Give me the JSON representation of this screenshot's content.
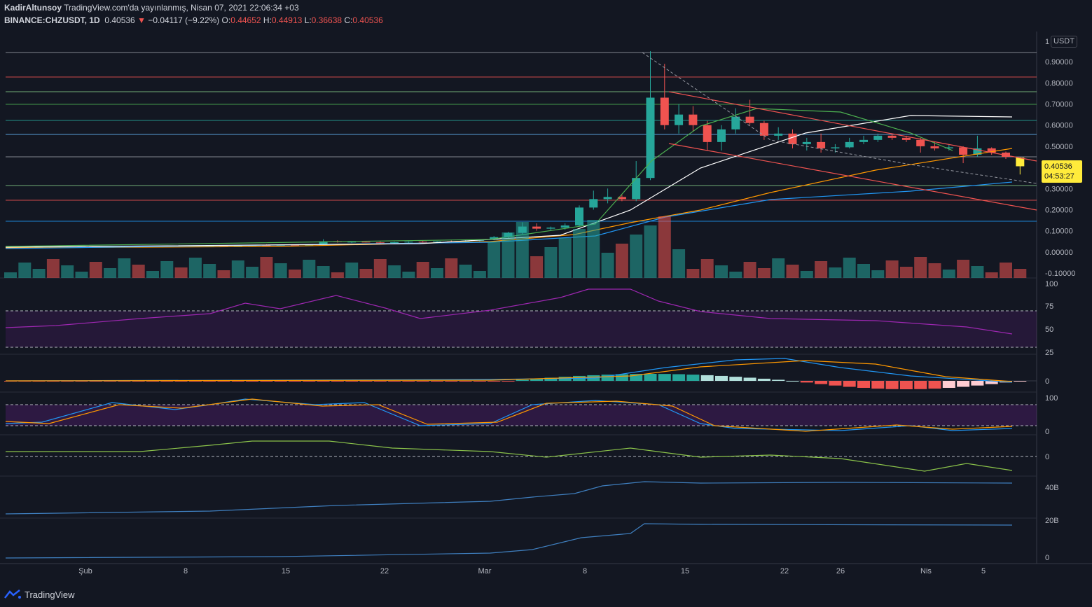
{
  "header": {
    "author": "KadirAltunsoy",
    "published": " TradingView.com'da yayınlanmış, Nisan 07, 2021 22:06:34 +03",
    "symbol": "BINANCE:CHZUSDT, 1D",
    "last": "0.40536",
    "change_arrow": "▼",
    "change": "−0.04117 (−9.22%)",
    "o_label": "O:",
    "o": "0.44652",
    "h_label": "H:",
    "h": "0.44913",
    "l_label": "L:",
    "l": "0.36638",
    "c_label": "C:",
    "c": "0.40536"
  },
  "price_axis": {
    "unit": "USDT",
    "ticks": [
      "1",
      "0.90000",
      "0.80000",
      "0.70000",
      "0.60000",
      "0.50000",
      "0.40000",
      "0.30000",
      "0.20000",
      "0.10000",
      "0.00000",
      "-0.10000"
    ],
    "last_price": "0.40536",
    "countdown": "04:53:27"
  },
  "time_axis": {
    "labels": [
      "Şub",
      "8",
      "15",
      "22",
      "Mar",
      "8",
      "15",
      "22",
      "26",
      "Nis",
      "5"
    ]
  },
  "rsi_axis": [
    "100",
    "75",
    "50",
    "25"
  ],
  "macd_axis": [
    "0"
  ],
  "stoch_axis": [
    "100",
    "0"
  ],
  "osc_axis": [
    "0"
  ],
  "vol_axis_1": [
    "40B"
  ],
  "vol_axis_2": [
    "20B",
    "0"
  ],
  "footer": {
    "brand": "TradingView"
  },
  "colors": {
    "background": "#131722",
    "up": "#26a69a",
    "down": "#ef5350",
    "last_candle": "#ffeb3b",
    "rsi": "#9c27b0",
    "macd": "#2196f3",
    "signal": "#ff9800"
  },
  "chart_data": {
    "type": "candlestick",
    "symbol": "BINANCE:CHZUSDT",
    "interval": "1D",
    "ylim": [
      -0.1,
      1.0
    ],
    "candles": [
      [
        0.02,
        0.022,
        0.018,
        0.021
      ],
      [
        0.021,
        0.023,
        0.02,
        0.022
      ],
      [
        0.022,
        0.024,
        0.021,
        0.023
      ],
      [
        0.023,
        0.025,
        0.021,
        0.022
      ],
      [
        0.022,
        0.024,
        0.021,
        0.023
      ],
      [
        0.023,
        0.025,
        0.022,
        0.024
      ],
      [
        0.024,
        0.026,
        0.022,
        0.023
      ],
      [
        0.023,
        0.025,
        0.022,
        0.024
      ],
      [
        0.024,
        0.026,
        0.023,
        0.025
      ],
      [
        0.025,
        0.027,
        0.023,
        0.024
      ],
      [
        0.024,
        0.026,
        0.023,
        0.025
      ],
      [
        0.025,
        0.028,
        0.024,
        0.027
      ],
      [
        0.027,
        0.03,
        0.025,
        0.026
      ],
      [
        0.026,
        0.028,
        0.025,
        0.027
      ],
      [
        0.027,
        0.03,
        0.026,
        0.029
      ],
      [
        0.029,
        0.032,
        0.027,
        0.028
      ],
      [
        0.028,
        0.031,
        0.027,
        0.03
      ],
      [
        0.03,
        0.034,
        0.029,
        0.032
      ],
      [
        0.032,
        0.036,
        0.03,
        0.031
      ],
      [
        0.031,
        0.034,
        0.03,
        0.033
      ],
      [
        0.033,
        0.036,
        0.031,
        0.032
      ],
      [
        0.032,
        0.035,
        0.031,
        0.034
      ],
      [
        0.034,
        0.06,
        0.033,
        0.05
      ],
      [
        0.05,
        0.055,
        0.044,
        0.046
      ],
      [
        0.046,
        0.05,
        0.042,
        0.048
      ],
      [
        0.048,
        0.052,
        0.044,
        0.045
      ],
      [
        0.045,
        0.05,
        0.04,
        0.042
      ],
      [
        0.042,
        0.048,
        0.04,
        0.046
      ],
      [
        0.046,
        0.05,
        0.042,
        0.048
      ],
      [
        0.048,
        0.052,
        0.044,
        0.047
      ],
      [
        0.047,
        0.052,
        0.045,
        0.05
      ],
      [
        0.05,
        0.054,
        0.046,
        0.049
      ],
      [
        0.049,
        0.056,
        0.047,
        0.053
      ],
      [
        0.053,
        0.06,
        0.05,
        0.058
      ],
      [
        0.058,
        0.075,
        0.055,
        0.07
      ],
      [
        0.07,
        0.095,
        0.065,
        0.09
      ],
      [
        0.09,
        0.14,
        0.085,
        0.12
      ],
      [
        0.12,
        0.135,
        0.1,
        0.11
      ],
      [
        0.11,
        0.12,
        0.1,
        0.115
      ],
      [
        0.115,
        0.135,
        0.105,
        0.125
      ],
      [
        0.125,
        0.22,
        0.12,
        0.21
      ],
      [
        0.21,
        0.29,
        0.2,
        0.25
      ],
      [
        0.25,
        0.3,
        0.23,
        0.26
      ],
      [
        0.26,
        0.27,
        0.24,
        0.25
      ],
      [
        0.25,
        0.43,
        0.24,
        0.35
      ],
      [
        0.35,
        0.95,
        0.34,
        0.73
      ],
      [
        0.73,
        0.89,
        0.58,
        0.6
      ],
      [
        0.6,
        0.7,
        0.56,
        0.65
      ],
      [
        0.65,
        0.69,
        0.57,
        0.6
      ],
      [
        0.6,
        0.62,
        0.48,
        0.52
      ],
      [
        0.52,
        0.6,
        0.48,
        0.58
      ],
      [
        0.58,
        0.68,
        0.56,
        0.64
      ],
      [
        0.64,
        0.72,
        0.6,
        0.61
      ],
      [
        0.61,
        0.62,
        0.53,
        0.55
      ],
      [
        0.55,
        0.59,
        0.53,
        0.56
      ],
      [
        0.56,
        0.58,
        0.49,
        0.51
      ],
      [
        0.51,
        0.54,
        0.48,
        0.52
      ],
      [
        0.52,
        0.56,
        0.47,
        0.49
      ],
      [
        0.49,
        0.51,
        0.47,
        0.495
      ],
      [
        0.495,
        0.54,
        0.49,
        0.52
      ],
      [
        0.52,
        0.55,
        0.51,
        0.53
      ],
      [
        0.53,
        0.56,
        0.52,
        0.55
      ],
      [
        0.55,
        0.56,
        0.53,
        0.54
      ],
      [
        0.54,
        0.55,
        0.52,
        0.53
      ],
      [
        0.53,
        0.54,
        0.47,
        0.5
      ],
      [
        0.5,
        0.52,
        0.48,
        0.49
      ],
      [
        0.49,
        0.51,
        0.48,
        0.495
      ],
      [
        0.495,
        0.5,
        0.42,
        0.46
      ],
      [
        0.46,
        0.55,
        0.45,
        0.49
      ],
      [
        0.49,
        0.495,
        0.46,
        0.47
      ],
      [
        0.47,
        0.475,
        0.44,
        0.45
      ],
      [
        0.44652,
        0.44913,
        0.36638,
        0.40536
      ]
    ],
    "last_price": 0.40536
  }
}
